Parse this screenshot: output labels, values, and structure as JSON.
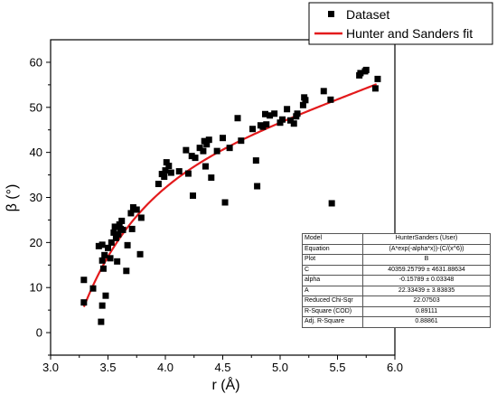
{
  "chart_data": {
    "type": "scatter",
    "title": "",
    "xlabel": "r (Å)",
    "ylabel": "β (°)",
    "xlim": [
      3.0,
      6.0
    ],
    "ylim": [
      -5,
      65
    ],
    "xticks": [
      "3.0",
      "3.5",
      "4.0",
      "4.5",
      "5.0",
      "5.5",
      "6.0"
    ],
    "yticks": [
      "0",
      "10",
      "20",
      "30",
      "40",
      "50",
      "60"
    ],
    "legend_position": "top-right",
    "series": [
      {
        "name": "Dataset",
        "marker": "square",
        "color": "#000000",
        "points": [
          [
            3.29,
            6.7
          ],
          [
            3.29,
            11.7
          ],
          [
            3.37,
            9.8
          ],
          [
            3.42,
            19.2
          ],
          [
            3.44,
            2.4
          ],
          [
            3.45,
            6.0
          ],
          [
            3.45,
            16.0
          ],
          [
            3.45,
            19.5
          ],
          [
            3.46,
            14.2
          ],
          [
            3.47,
            17.2
          ],
          [
            3.48,
            8.2
          ],
          [
            3.5,
            18.8
          ],
          [
            3.52,
            16.5
          ],
          [
            3.53,
            20.0
          ],
          [
            3.55,
            22.2
          ],
          [
            3.56,
            23.5
          ],
          [
            3.57,
            21.0
          ],
          [
            3.58,
            15.8
          ],
          [
            3.59,
            21.8
          ],
          [
            3.6,
            24.0
          ],
          [
            3.61,
            23.0
          ],
          [
            3.62,
            24.8
          ],
          [
            3.63,
            22.8
          ],
          [
            3.66,
            13.7
          ],
          [
            3.67,
            19.4
          ],
          [
            3.7,
            26.5
          ],
          [
            3.71,
            23.0
          ],
          [
            3.72,
            27.8
          ],
          [
            3.75,
            27.3
          ],
          [
            3.78,
            17.4
          ],
          [
            3.79,
            25.5
          ],
          [
            3.94,
            33.0
          ],
          [
            3.97,
            35.2
          ],
          [
            3.99,
            34.6
          ],
          [
            4.0,
            36.0
          ],
          [
            4.01,
            37.8
          ],
          [
            4.03,
            37.0
          ],
          [
            4.05,
            35.5
          ],
          [
            4.12,
            35.8
          ],
          [
            4.18,
            40.5
          ],
          [
            4.2,
            35.3
          ],
          [
            4.23,
            39.2
          ],
          [
            4.24,
            30.4
          ],
          [
            4.26,
            38.8
          ],
          [
            4.3,
            41.0
          ],
          [
            4.33,
            40.3
          ],
          [
            4.34,
            42.5
          ],
          [
            4.35,
            36.9
          ],
          [
            4.36,
            41.8
          ],
          [
            4.38,
            42.8
          ],
          [
            4.4,
            34.4
          ],
          [
            4.45,
            40.3
          ],
          [
            4.5,
            43.2
          ],
          [
            4.52,
            28.9
          ],
          [
            4.56,
            41.0
          ],
          [
            4.63,
            47.6
          ],
          [
            4.66,
            42.6
          ],
          [
            4.76,
            45.2
          ],
          [
            4.79,
            38.2
          ],
          [
            4.8,
            32.5
          ],
          [
            4.83,
            46.0
          ],
          [
            4.85,
            45.7
          ],
          [
            4.87,
            48.5
          ],
          [
            4.88,
            46.2
          ],
          [
            4.91,
            48.2
          ],
          [
            4.95,
            48.6
          ],
          [
            5.0,
            46.6
          ],
          [
            5.02,
            47.3
          ],
          [
            5.06,
            49.6
          ],
          [
            5.09,
            47.1
          ],
          [
            5.12,
            46.4
          ],
          [
            5.14,
            48.0
          ],
          [
            5.15,
            48.6
          ],
          [
            5.2,
            50.5
          ],
          [
            5.21,
            52.2
          ],
          [
            5.22,
            51.6
          ],
          [
            5.38,
            53.6
          ],
          [
            5.44,
            51.7
          ],
          [
            5.45,
            28.7
          ],
          [
            5.69,
            57.1
          ],
          [
            5.7,
            57.6
          ],
          [
            5.74,
            58.0
          ],
          [
            5.75,
            58.3
          ],
          [
            5.83,
            54.2
          ],
          [
            5.85,
            56.3
          ]
        ]
      },
      {
        "name": "Hunter and Sanders fit",
        "type": "line",
        "color": "#e31a1c",
        "x_range": [
          3.29,
          5.84
        ],
        "model": "A*exp(-alpha*x)-(C/(x^6))",
        "params": {
          "A": 22.33439,
          "alpha": -0.15789,
          "C": 40359.25799
        }
      }
    ],
    "fit_table": [
      {
        "key": "Model",
        "value": "HunterSanders (User)"
      },
      {
        "key": "Equation",
        "value": "(A*exp(-alpha*x))-(C/(x^6))"
      },
      {
        "key": "Plot",
        "value": "B"
      },
      {
        "key": "C",
        "value": "40359.25799 ± 4631.88634"
      },
      {
        "key": "alpha",
        "value": "-0.15789 ± 0.03348"
      },
      {
        "key": "A",
        "value": "22.33439 ± 3.83835"
      },
      {
        "key": "Reduced Chi-Sqr",
        "value": "22.07503"
      },
      {
        "key": "R-Square (COD)",
        "value": "0.89111"
      },
      {
        "key": "Adj. R-Square",
        "value": "0.88861"
      }
    ]
  }
}
